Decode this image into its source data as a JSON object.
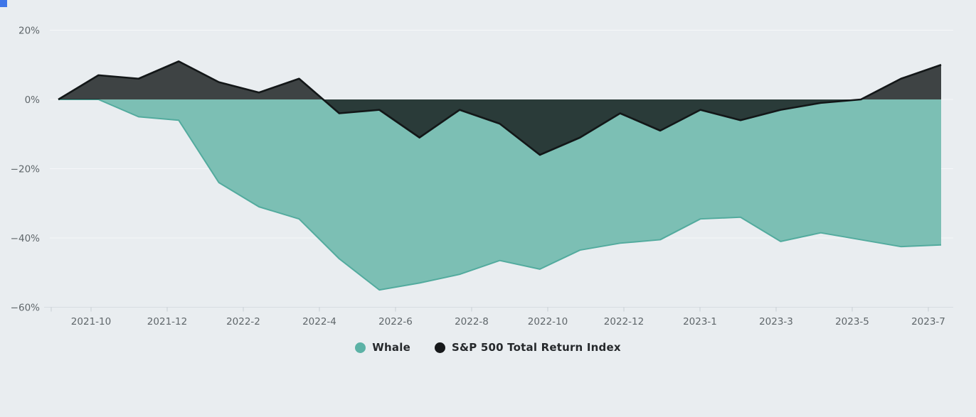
{
  "page": {
    "background_color": "#e9edf0",
    "corner_accent_color": "#3f76e8"
  },
  "chart_data": {
    "type": "area",
    "title": "",
    "xlabel": "",
    "ylabel": "",
    "unit": "%",
    "ylim": [
      -60,
      20
    ],
    "grid": true,
    "legend_position": "bottom-center",
    "x_tick_labels": [
      "2021-10",
      "2021-12",
      "2022-2",
      "2022-4",
      "2022-6",
      "2022-8",
      "2022-10",
      "2022-12",
      "2023-1",
      "2023-3",
      "2023-5",
      "2023-7"
    ],
    "y_ticks": [
      {
        "value": 20,
        "label": "20%"
      },
      {
        "value": 0,
        "label": "0%"
      },
      {
        "value": -20,
        "label": "−20%"
      },
      {
        "value": -40,
        "label": "−40%"
      },
      {
        "value": -60,
        "label": "−60%"
      }
    ],
    "colors": {
      "grid": "#f5f7f9",
      "axis": "#d7dce1",
      "tick": "#c7ced5",
      "label": "#5f666a"
    },
    "series": [
      {
        "name": "Whale",
        "fill": "#7cbfb4",
        "fill_opacity": 1,
        "stroke": "#53ab9e",
        "legend_color": "#5cb2a6",
        "baseline": 0,
        "values": [
          0,
          0,
          -5,
          -6,
          -24,
          -31,
          -34.5,
          -46,
          -55,
          -53,
          -50.5,
          -46.5,
          -49,
          -43.5,
          -41.5,
          -40.5,
          -34.5,
          -34,
          -41,
          -38.5,
          -40.5,
          -42.5,
          -42
        ]
      },
      {
        "name": "S&P 500 Total Return Index",
        "fill": "#191d1d",
        "fill_opacity": 0.82,
        "stroke": "#131718",
        "legend_color": "#17191b",
        "baseline": 0,
        "values": [
          0,
          7,
          6,
          11,
          5,
          2,
          6,
          -4,
          -3,
          -11,
          -3,
          -7,
          -16,
          -11,
          -4,
          -9,
          -3,
          -6,
          -3,
          -1,
          0,
          6,
          10
        ]
      }
    ]
  }
}
